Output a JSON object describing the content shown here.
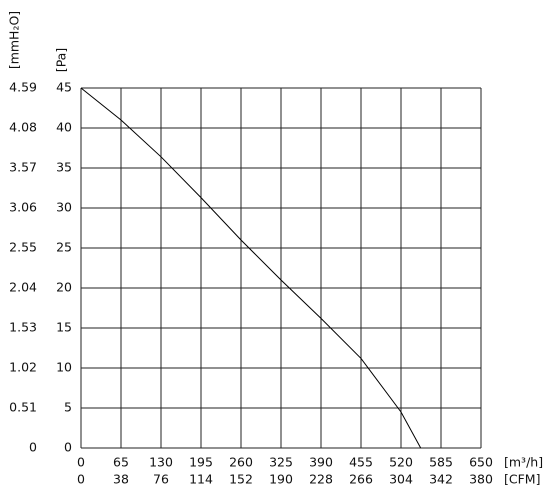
{
  "chart_data": {
    "type": "line",
    "y_label": "[Pa]",
    "y2_label": "[mmH₂O]",
    "x_label": "[m³/h]",
    "x2_label": "[CFM]",
    "x": [
      0,
      65,
      130,
      195,
      260,
      325,
      390,
      455,
      520,
      552
    ],
    "values": [
      45,
      41,
      36.4,
      31.3,
      26,
      21,
      16.2,
      11.2,
      4.5,
      0
    ],
    "color": "#000000",
    "xlim": [
      0,
      650
    ],
    "xticks": [
      0,
      65,
      130,
      195,
      260,
      325,
      390,
      455,
      520,
      585,
      650
    ],
    "x2lim": [
      0,
      380
    ],
    "x2ticks": [
      0,
      38,
      76,
      114,
      152,
      190,
      228,
      266,
      304,
      342,
      380
    ],
    "ylim": [
      0,
      45
    ],
    "yticks": [
      0,
      5,
      10,
      15,
      20,
      25,
      30,
      35,
      40,
      45
    ],
    "y2lim": [
      0,
      4.59
    ],
    "y2ticks": [
      0,
      0.51,
      1.02,
      1.53,
      2.04,
      2.55,
      3.06,
      3.57,
      4.08,
      4.59
    ],
    "grid": true
  }
}
